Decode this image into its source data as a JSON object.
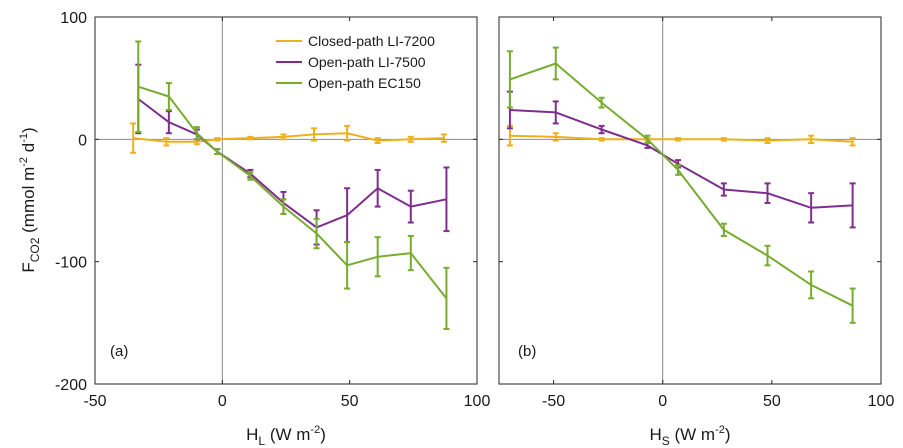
{
  "figure": {
    "ylabel": "F",
    "ylabel_sub": "CO2",
    "ylabel_unit_pre": " (mmol m",
    "ylabel_exp1": "-2",
    "ylabel_unit_mid": " d",
    "ylabel_exp2": "-1",
    "ylabel_unit_post": ")"
  },
  "series_style": [
    {
      "name": "Closed-path LI-7200",
      "color": "#EDB120"
    },
    {
      "name": "Open-path LI-7500",
      "color": "#7E2F8E"
    },
    {
      "name": "Open-path EC150",
      "color": "#77AC30"
    }
  ],
  "chart_data": [
    {
      "type": "line",
      "panel_label": "(a)",
      "xlabel": "H",
      "xlabel_sub": "L",
      "xlabel_unit_pre": " (W m",
      "xlabel_exp": "-2",
      "xlabel_unit_post": ")",
      "xlim": [
        -50,
        100
      ],
      "ylim": [
        -200,
        100
      ],
      "xticks": [
        -50,
        0,
        50,
        100
      ],
      "yticks": [
        -200,
        -100,
        0,
        100
      ],
      "zero_lines": true,
      "legend_position": "top-right",
      "series": [
        {
          "name": "Closed-path LI-7200",
          "x": [
            -35,
            -22,
            -10,
            -2,
            11,
            24,
            36,
            49,
            61,
            74,
            87
          ],
          "y": [
            1,
            -2,
            -2,
            0,
            1,
            2,
            4,
            5,
            -1,
            0,
            1
          ],
          "err": [
            12,
            3,
            2,
            1,
            1,
            2,
            5,
            6,
            2,
            2,
            3
          ]
        },
        {
          "name": "Open-path LI-7500",
          "x": [
            -33,
            -21,
            -10,
            -2,
            11,
            24,
            37,
            49,
            61,
            74,
            88
          ],
          "y": [
            33,
            14,
            4,
            -10,
            -28,
            -52,
            -72,
            -62,
            -40,
            -55,
            -49
          ],
          "err": [
            28,
            9,
            4,
            2,
            3,
            9,
            14,
            22,
            15,
            13,
            26
          ]
        },
        {
          "name": "Open-path EC150",
          "x": [
            -33,
            -21,
            -10,
            -2,
            11,
            24,
            37,
            49,
            61,
            74,
            88
          ],
          "y": [
            43,
            35,
            5,
            -10,
            -30,
            -55,
            -77,
            -103,
            -96,
            -93,
            -130
          ],
          "err": [
            37,
            11,
            5,
            2,
            3,
            6,
            12,
            19,
            16,
            14,
            25
          ]
        }
      ]
    },
    {
      "type": "line",
      "panel_label": "(b)",
      "xlabel": "H",
      "xlabel_sub": "S",
      "xlabel_unit_pre": " (W m",
      "xlabel_exp": "-2",
      "xlabel_unit_post": ")",
      "xlim": [
        -75,
        100
      ],
      "ylim": [
        -200,
        100
      ],
      "xticks": [
        -50,
        0,
        50,
        100
      ],
      "yticks": [
        -200,
        -100,
        0,
        100
      ],
      "zero_lines": true,
      "series": [
        {
          "name": "Closed-path LI-7200",
          "x": [
            -70,
            -49,
            -28,
            -7,
            7,
            28,
            48,
            68,
            87
          ],
          "y": [
            3,
            2,
            0,
            0,
            0,
            0,
            -1,
            0,
            -2
          ],
          "err": [
            8,
            3,
            1,
            1,
            1,
            1,
            2,
            3,
            3
          ]
        },
        {
          "name": "Open-path LI-7500",
          "x": [
            -70,
            -49,
            -28,
            -7,
            7,
            28,
            48,
            68,
            87
          ],
          "y": [
            24,
            22,
            8,
            -5,
            -20,
            -41,
            -44,
            -56,
            -54
          ],
          "err": [
            15,
            9,
            3,
            2,
            3,
            5,
            8,
            12,
            18
          ]
        },
        {
          "name": "Open-path EC150",
          "x": [
            -70,
            -49,
            -28,
            -7,
            7,
            28,
            48,
            68,
            87
          ],
          "y": [
            49,
            62,
            30,
            0,
            -25,
            -74,
            -95,
            -119,
            -136
          ],
          "err": [
            23,
            13,
            4,
            3,
            4,
            5,
            8,
            11,
            14
          ]
        }
      ]
    }
  ]
}
